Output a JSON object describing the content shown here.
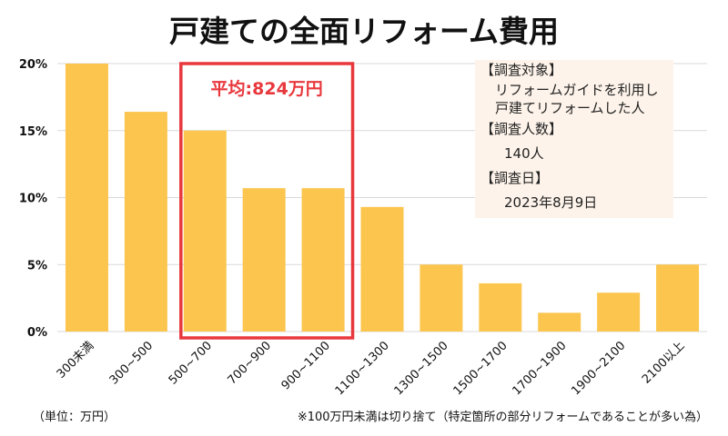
{
  "chart_data": {
    "type": "bar",
    "title": "戸建ての全面リフォーム費用",
    "categories": [
      "300未満",
      "300~500",
      "500~700",
      "700~900",
      "900~1100",
      "1100~1300",
      "1300~1500",
      "1500~1700",
      "1700~1900",
      "1900~2100",
      "2100以上"
    ],
    "values": [
      20.0,
      16.4,
      15.0,
      10.7,
      10.7,
      9.3,
      5.0,
      3.6,
      1.4,
      2.9,
      5.0
    ],
    "ylim": [
      0,
      20
    ],
    "yticks": [
      "0%",
      "5%",
      "10%",
      "15%",
      "20%"
    ],
    "ytick_values": [
      0,
      5,
      10,
      15,
      20
    ],
    "grid": true,
    "bar_color": "#fcc54e",
    "highlight": {
      "label": "平均:824万円",
      "categories": [
        "500~700",
        "700~900",
        "900~1100"
      ],
      "color": "#e8383d"
    }
  },
  "info_box": {
    "lines": [
      "【調査対象】",
      "リフォームガイドを利用し",
      "戸建てリフォームした人",
      "【調査人数】",
      "140人",
      "【調査日】",
      "2023年8月9日"
    ]
  },
  "footer": {
    "unit": "（単位：万円）",
    "note": "※100万円未満は切り捨て（特定箇所の部分リフォームであることが多い為）"
  }
}
